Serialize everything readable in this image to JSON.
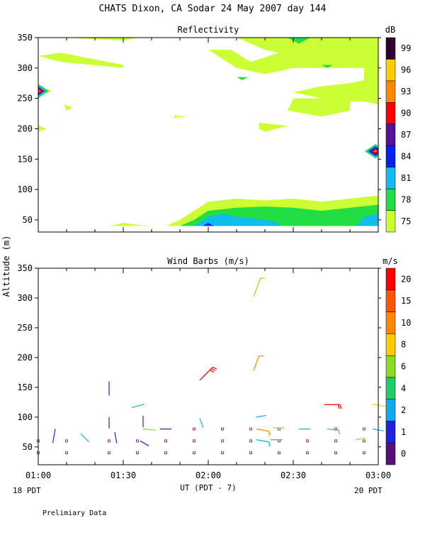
{
  "page": {
    "title": "CHATS Dixon, CA  Sodar  24 May 2007  day 144",
    "y_axis_label": "Altitude (m)",
    "x_axis_label": "UT  (PDT - 7)",
    "left_date": "18 PDT",
    "right_date": "20 PDT",
    "footnote": "Prelimiary Data"
  },
  "chart_data": [
    {
      "type": "heatmap",
      "title": "Reflectivity",
      "colorbar_title": "dB",
      "colorbar_ticks": [
        "75",
        "78",
        "81",
        "84",
        "87",
        "90",
        "93",
        "96",
        "99"
      ],
      "colorbar_colors": [
        "#ccff33",
        "#22dd44",
        "#11bbee",
        "#0022ee",
        "#551199",
        "#ff0000",
        "#ff8800",
        "#ffcc00",
        "#330033"
      ],
      "y_ticks": [
        50,
        100,
        150,
        200,
        250,
        300,
        350
      ],
      "ylim": [
        30,
        350
      ],
      "xlim": [
        0,
        120
      ],
      "levels": [
        {
          "color": "#ccff33",
          "polygons": [
            [
              [
                0,
                320
              ],
              [
                8,
                310
              ],
              [
                30,
                300
              ],
              [
                30,
                305
              ],
              [
                8,
                325
              ],
              [
                0,
                320
              ]
            ],
            [
              [
                10,
                350
              ],
              [
                30,
                345
              ],
              [
                35,
                350
              ]
            ],
            [
              [
                70,
                350
              ],
              [
                80,
                330
              ],
              [
                90,
                320
              ],
              [
                100,
                320
              ],
              [
                110,
                310
              ],
              [
                110,
                350
              ]
            ],
            [
              [
                60,
                330
              ],
              [
                70,
                300
              ],
              [
                80,
                290
              ],
              [
                90,
                300
              ],
              [
                105,
                300
              ],
              [
                115,
                300
              ],
              [
                115,
                280
              ],
              [
                110,
                275
              ],
              [
                100,
                270
              ],
              [
                90,
                260
              ],
              [
                95,
                255
              ],
              [
                105,
                245
              ],
              [
                115,
                245
              ],
              [
                120,
                240
              ],
              [
                120,
                350
              ],
              [
                95,
                350
              ],
              [
                85,
                325
              ],
              [
                75,
                310
              ],
              [
                68,
                330
              ]
            ],
            [
              [
                90,
                250
              ],
              [
                110,
                250
              ],
              [
                110,
                230
              ],
              [
                100,
                220
              ],
              [
                88,
                230
              ]
            ],
            [
              [
                0,
                270
              ],
              [
                5,
                262
              ],
              [
                0,
                255
              ]
            ],
            [
              [
                9,
                240
              ],
              [
                12,
                235
              ],
              [
                10,
                230
              ]
            ],
            [
              [
                0,
                205
              ],
              [
                3,
                200
              ],
              [
                0,
                195
              ]
            ],
            [
              [
                48,
                222
              ],
              [
                52,
                220
              ],
              [
                48,
                218
              ]
            ],
            [
              [
                78,
                210
              ],
              [
                88,
                205
              ],
              [
                80,
                195
              ],
              [
                78,
                200
              ]
            ],
            [
              [
                25,
                40
              ],
              [
                30,
                45
              ],
              [
                35,
                42
              ],
              [
                40,
                40
              ]
            ],
            [
              [
                45,
                40
              ],
              [
                50,
                50
              ],
              [
                55,
                65
              ],
              [
                60,
                80
              ],
              [
                70,
                85
              ],
              [
                80,
                82
              ],
              [
                90,
                85
              ],
              [
                100,
                80
              ],
              [
                110,
                85
              ],
              [
                120,
                90
              ],
              [
                120,
                40
              ]
            ]
          ]
        },
        {
          "color": "#22dd44",
          "polygons": [
            [
              [
                50,
                40
              ],
              [
                55,
                50
              ],
              [
                60,
                65
              ],
              [
                70,
                70
              ],
              [
                80,
                72
              ],
              [
                90,
                70
              ],
              [
                100,
                65
              ],
              [
                110,
                70
              ],
              [
                120,
                75
              ],
              [
                120,
                40
              ]
            ],
            [
              [
                88,
                350
              ],
              [
                92,
                340
              ],
              [
                96,
                350
              ]
            ],
            [
              [
                70,
                285
              ],
              [
                72,
                280
              ],
              [
                74,
                285
              ]
            ],
            [
              [
                100,
                305
              ],
              [
                102,
                300
              ],
              [
                104,
                305
              ]
            ]
          ]
        },
        {
          "color": "#11bbee",
          "polygons": [
            [
              [
                55,
                40
              ],
              [
                60,
                55
              ],
              [
                65,
                60
              ],
              [
                70,
                55
              ],
              [
                80,
                50
              ],
              [
                85,
                45
              ],
              [
                85,
                40
              ]
            ],
            [
              [
                112,
                40
              ],
              [
                115,
                55
              ],
              [
                120,
                60
              ],
              [
                120,
                40
              ]
            ]
          ]
        },
        {
          "color": "#0022ee",
          "polygons": [
            [
              [
                58,
                40
              ],
              [
                60,
                45
              ],
              [
                62,
                40
              ]
            ]
          ]
        }
      ],
      "hotspots": [
        {
          "x": 0,
          "y": 262,
          "rings": [
            "#22dd44",
            "#11bbee",
            "#551199",
            "#ff0000",
            "#ff8800"
          ]
        },
        {
          "x": 119,
          "y": 163,
          "rings": [
            "#22dd44",
            "#11bbee",
            "#0022ee",
            "#551199",
            "#ff0000",
            "#ff8800"
          ]
        }
      ]
    },
    {
      "type": "scatter",
      "title": "Wind Barbs (m/s)",
      "colorbar_title": "m/s",
      "colorbar_ticks": [
        "0",
        "1",
        "2",
        "4",
        "6",
        "8",
        "10",
        "15",
        "20"
      ],
      "colorbar_colors": [
        "#551177",
        "#2222dd",
        "#11aaee",
        "#22cc66",
        "#88dd22",
        "#ffcc00",
        "#ff8800",
        "#ff5500",
        "#ff0000"
      ],
      "y_ticks": [
        50,
        100,
        150,
        200,
        250,
        300,
        350
      ],
      "ylim": [
        20,
        350
      ],
      "x_ticks": [
        "01:00",
        "01:30",
        "02:00",
        "02:30",
        "03:00"
      ],
      "xlim": [
        0,
        120
      ],
      "low_markers": {
        "color": "#993399",
        "rows": [
          {
            "y": 80,
            "x": [
              55,
              65,
              75,
              85,
              105,
              115
            ]
          },
          {
            "y": 60,
            "x": [
              0,
              10,
              25,
              35,
              45,
              55,
              65,
              75,
              85,
              95,
              105,
              115
            ]
          },
          {
            "y": 40,
            "x": [
              0,
              10,
              25,
              35,
              45,
              55,
              65,
              75,
              85,
              95,
              105,
              115
            ]
          }
        ]
      },
      "barbs": [
        {
          "x": 6,
          "y": 80,
          "len": 20,
          "ang": 190,
          "color": "#2222dd"
        },
        {
          "x": 15,
          "y": 72,
          "len": 16,
          "ang": 135,
          "color": "#11aaee"
        },
        {
          "x": 25,
          "y": 160,
          "len": 20,
          "ang": 180,
          "color": "#2222dd"
        },
        {
          "x": 25,
          "y": 100,
          "len": 16,
          "ang": 180,
          "color": "#2222dd"
        },
        {
          "x": 27,
          "y": 75,
          "len": 16,
          "ang": 170,
          "color": "#2222dd"
        },
        {
          "x": 33,
          "y": 116,
          "len": 18,
          "ang": 75,
          "color": "#22cc66"
        },
        {
          "x": 37,
          "y": 102,
          "len": 16,
          "ang": 180,
          "color": "#2222dd"
        },
        {
          "x": 37,
          "y": 80,
          "len": 18,
          "ang": 95,
          "color": "#88dd22"
        },
        {
          "x": 36,
          "y": 60,
          "len": 14,
          "ang": 120,
          "color": "#2222dd"
        },
        {
          "x": 43,
          "y": 80,
          "len": 16,
          "ang": 90,
          "color": "#551177"
        },
        {
          "x": 57,
          "y": 98,
          "len": 14,
          "ang": 160,
          "color": "#11aaee"
        },
        {
          "x": 57,
          "y": 162,
          "len": 26,
          "ang": 45,
          "color": "#ff0000",
          "barbs": 3
        },
        {
          "x": 76,
          "y": 302,
          "len": 28,
          "ang": 20,
          "color": "#88dd22",
          "barbs": 1
        },
        {
          "x": 76,
          "y": 178,
          "len": 22,
          "ang": 20,
          "color": "#ff8800",
          "barbs": 1
        },
        {
          "x": 77,
          "y": 100,
          "len": 14,
          "ang": 80,
          "color": "#11aaee"
        },
        {
          "x": 77,
          "y": 62,
          "len": 18,
          "ang": 100,
          "color": "#11aaee",
          "barbs": 1
        },
        {
          "x": 77,
          "y": 80,
          "len": 18,
          "ang": 100,
          "color": "#ff8800",
          "barbs": 1
        },
        {
          "x": 83,
          "y": 82,
          "len": 16,
          "ang": 90,
          "color": "#88dd22"
        },
        {
          "x": 82,
          "y": 62,
          "len": 16,
          "ang": 90,
          "color": "#11aaee"
        },
        {
          "x": 92,
          "y": 80,
          "len": 16,
          "ang": 90,
          "color": "#11aaee"
        },
        {
          "x": 102,
          "y": 80,
          "len": 16,
          "ang": 95,
          "color": "#22cc66",
          "barbs": 1
        },
        {
          "x": 101,
          "y": 121,
          "len": 22,
          "ang": 90,
          "color": "#ff0000",
          "barbs": 2
        },
        {
          "x": 118,
          "y": 122,
          "len": 20,
          "ang": 100,
          "color": "#ffcc00",
          "barbs": 1
        },
        {
          "x": 118,
          "y": 80,
          "len": 16,
          "ang": 100,
          "color": "#11aaee"
        },
        {
          "x": 112,
          "y": 62,
          "len": 14,
          "ang": 80,
          "color": "#88dd22"
        }
      ]
    }
  ]
}
